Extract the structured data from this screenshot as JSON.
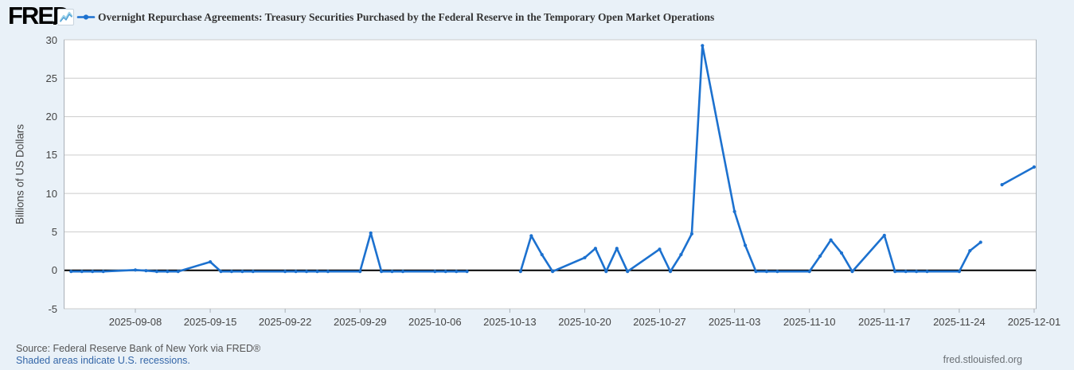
{
  "header": {
    "logo_text": "FRED",
    "logo_icon": "sparkline-chart-icon",
    "series_legend_icon": "blue-line-with-dot-marker",
    "title": "Overnight Repurchase Agreements: Treasury Securities Purchased by the Federal Reserve in the Temporary Open Market Operations"
  },
  "footer": {
    "source_text": "Source: Federal Reserve Bank of New York via FRED®",
    "recession_note": "Shaded areas indicate U.S. recessions.",
    "site_text": "fred.stlouisfed.org"
  },
  "colors": {
    "page_background": "#e9f1f8",
    "plot_background": "#ffffff",
    "series_line": "#1c71cf",
    "gridline": "#cccccc",
    "plot_border": "#a9b0b7",
    "zero_line": "#000000",
    "title_text": "#333333",
    "axis_text": "#444444",
    "link_text": "#3466a8"
  },
  "chart_data": {
    "type": "line",
    "title": "Overnight Repurchase Agreements: Treasury Securities Purchased by the Federal Reserve in the Temporary Open Market Operations",
    "xlabel": "",
    "ylabel": "Billions of US Dollars",
    "ylim": [
      -5,
      30
    ],
    "x_range": [
      "2025-09-01",
      "2025-12-02"
    ],
    "y_ticks": [
      30,
      25,
      20,
      15,
      10,
      5,
      0,
      -5
    ],
    "x_ticks": [
      "2025-09-08",
      "2025-09-15",
      "2025-09-22",
      "2025-09-29",
      "2025-10-06",
      "2025-10-13",
      "2025-10-20",
      "2025-10-27",
      "2025-11-03",
      "2025-11-10",
      "2025-11-17",
      "2025-11-24",
      "2025-12-01"
    ],
    "grid": "horizontal-only",
    "legend_position": "top-header",
    "markers": "small-dots-on-daily-observations",
    "line_breaks_note": "gaps in line at 2025-10-10/2025-10-13 and 2025-11-27 (missing observations)",
    "series": [
      {
        "name": "Overnight Repurchase Agreements: Treasury Securities Purchased by the Federal Reserve in the Temporary Open Market Operations",
        "unit": "Billions of US Dollars",
        "points": [
          [
            "2025-09-02",
            0
          ],
          [
            "2025-09-03",
            0
          ],
          [
            "2025-09-04",
            0
          ],
          [
            "2025-09-05",
            0
          ],
          [
            "2025-09-08",
            0.2
          ],
          [
            "2025-09-09",
            0.1
          ],
          [
            "2025-09-10",
            0
          ],
          [
            "2025-09-11",
            0
          ],
          [
            "2025-09-12",
            0
          ],
          [
            "2025-09-15",
            1.25
          ],
          [
            "2025-09-16",
            0
          ],
          [
            "2025-09-17",
            0
          ],
          [
            "2025-09-18",
            0
          ],
          [
            "2025-09-19",
            0
          ],
          [
            "2025-09-22",
            0
          ],
          [
            "2025-09-23",
            0
          ],
          [
            "2025-09-24",
            0
          ],
          [
            "2025-09-25",
            0
          ],
          [
            "2025-09-26",
            0
          ],
          [
            "2025-09-29",
            0
          ],
          [
            "2025-09-30",
            5.0
          ],
          [
            "2025-10-01",
            0
          ],
          [
            "2025-10-02",
            0
          ],
          [
            "2025-10-03",
            0
          ],
          [
            "2025-10-06",
            0
          ],
          [
            "2025-10-07",
            0
          ],
          [
            "2025-10-08",
            0
          ],
          [
            "2025-10-09",
            0
          ],
          [
            "2025-10-10",
            null
          ],
          [
            "2025-10-14",
            0
          ],
          [
            "2025-10-15",
            4.65
          ],
          [
            "2025-10-16",
            2.2
          ],
          [
            "2025-10-17",
            0
          ],
          [
            "2025-10-20",
            1.8
          ],
          [
            "2025-10-21",
            3.0
          ],
          [
            "2025-10-22",
            0
          ],
          [
            "2025-10-23",
            3.0
          ],
          [
            "2025-10-24",
            0
          ],
          [
            "2025-10-27",
            2.9
          ],
          [
            "2025-10-28",
            0
          ],
          [
            "2025-10-29",
            2.2
          ],
          [
            "2025-10-30",
            4.9
          ],
          [
            "2025-10-31",
            29.4
          ],
          [
            "2025-11-03",
            7.8
          ],
          [
            "2025-11-04",
            3.4
          ],
          [
            "2025-11-05",
            0
          ],
          [
            "2025-11-06",
            0
          ],
          [
            "2025-11-07",
            0
          ],
          [
            "2025-11-10",
            0
          ],
          [
            "2025-11-11",
            2.0
          ],
          [
            "2025-11-12",
            4.1
          ],
          [
            "2025-11-13",
            2.4
          ],
          [
            "2025-11-14",
            0
          ],
          [
            "2025-11-17",
            4.7
          ],
          [
            "2025-11-18",
            0
          ],
          [
            "2025-11-19",
            0
          ],
          [
            "2025-11-20",
            0
          ],
          [
            "2025-11-21",
            0
          ],
          [
            "2025-11-24",
            0
          ],
          [
            "2025-11-25",
            2.7
          ],
          [
            "2025-11-26",
            3.8
          ],
          [
            "2025-11-27",
            null
          ],
          [
            "2025-11-28",
            11.3
          ],
          [
            "2025-12-01",
            13.6
          ]
        ]
      }
    ]
  }
}
